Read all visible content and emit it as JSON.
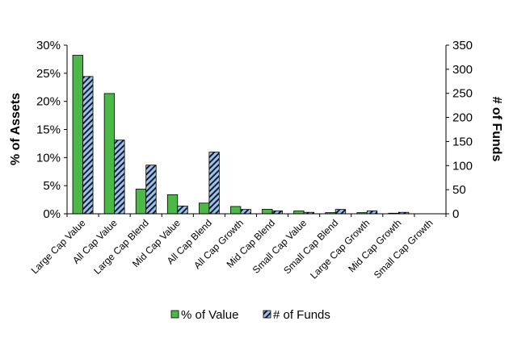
{
  "chart_data": {
    "type": "bar",
    "categories": [
      "Large Cap Value",
      "All Cap Value",
      "Large Cap Blend",
      "Mid Cap Value",
      "All Cap Blend",
      "All Cap Growth",
      "Mid Cap Blend",
      "Small Cap Value",
      "Small Cap Blend",
      "Large Cap Growth",
      "Mid Cap Growth",
      "Small Cap Growth"
    ],
    "ylabel": "% of Assets",
    "y2label": "# of Funds",
    "ylim": [
      0,
      30
    ],
    "y2lim": [
      0,
      350
    ],
    "yticks": [
      "0%",
      "5%",
      "10%",
      "15%",
      "20%",
      "25%",
      "30%"
    ],
    "y2ticks": [
      "0",
      "50",
      "100",
      "150",
      "200",
      "250",
      "300",
      "350"
    ],
    "legend_position": "bottom",
    "grid": false,
    "series": [
      {
        "name": "% of Value",
        "axis": "left",
        "color": "#4cb848",
        "values": [
          28.2,
          21.4,
          4.4,
          3.4,
          1.9,
          1.3,
          0.8,
          0.5,
          0.2,
          0.2,
          0.1,
          0.0
        ]
      },
      {
        "name": "# of Funds",
        "axis": "right",
        "color": "#8db4e2",
        "pattern": "diagonal-hatch",
        "values": [
          285,
          153,
          101,
          16,
          128,
          9,
          6,
          3,
          9,
          6,
          3,
          0
        ]
      }
    ]
  }
}
